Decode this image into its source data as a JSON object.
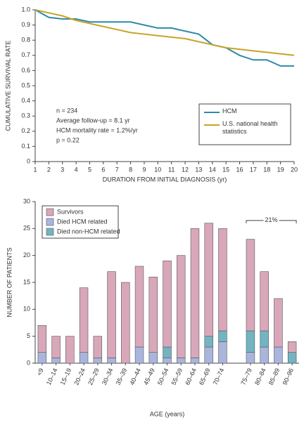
{
  "chart_data": [
    {
      "type": "line",
      "xlabel": "DURATION FROM INITIAL DIAGNOSIS (yr)",
      "ylabel": "CUMULATIVE SURVIVAL RATE",
      "x": [
        1,
        2,
        3,
        4,
        5,
        6,
        7,
        8,
        9,
        10,
        11,
        12,
        13,
        14,
        15,
        16,
        17,
        18,
        19,
        20
      ],
      "series": [
        {
          "name": "HCM",
          "color": "#2c8ba8",
          "values": [
            1.0,
            0.95,
            0.94,
            0.94,
            0.92,
            0.92,
            0.92,
            0.92,
            0.9,
            0.88,
            0.88,
            0.86,
            0.84,
            0.77,
            0.75,
            0.7,
            0.67,
            0.67,
            0.63,
            0.63
          ]
        },
        {
          "name": "U.S. national health statistics",
          "color": "#c9a227",
          "values": [
            1.0,
            0.98,
            0.96,
            0.93,
            0.91,
            0.89,
            0.87,
            0.85,
            0.84,
            0.83,
            0.82,
            0.81,
            0.79,
            0.77,
            0.75,
            0.74,
            0.73,
            0.72,
            0.71,
            0.7
          ]
        }
      ],
      "annotations": [
        "n = 234",
        "Average follow-up = 8.1 yr",
        "HCM mortality rate = 1.2%/yr",
        "p = 0.22"
      ],
      "xlim": [
        1,
        20
      ],
      "xticks": [
        1,
        2,
        3,
        4,
        5,
        6,
        7,
        8,
        9,
        10,
        11,
        12,
        13,
        14,
        15,
        16,
        17,
        18,
        19,
        20
      ],
      "ylim": [
        0,
        1
      ],
      "yticks": [
        0,
        0.1,
        0.2,
        0.3,
        0.4,
        0.5,
        0.6,
        0.7,
        0.8,
        0.9,
        {
          "value": 1,
          "label": "1.0"
        }
      ],
      "legend": "lower right"
    },
    {
      "type": "bar",
      "stacked": true,
      "xlabel": "AGE (years)",
      "ylabel": "NUMBER OF PATIENTS",
      "categories": [
        "<9",
        "10–14",
        "15–19",
        "20–24",
        "25–29",
        "30–34",
        "35–39",
        "40–44",
        "45–49",
        "50–54",
        "55–59",
        "60–64",
        "65–69",
        "70–74",
        null,
        "75–79",
        "80–84",
        "85–89",
        "90–96"
      ],
      "series": [
        {
          "name": "Survivors",
          "color": "#d9a7ba",
          "values": [
            5,
            4,
            5,
            12,
            4,
            16,
            15,
            15,
            14,
            16,
            19,
            24,
            21,
            19,
            null,
            17,
            11,
            9,
            2
          ]
        },
        {
          "name": "Died HCM related",
          "color": "#aab5dd",
          "values": [
            2,
            1,
            0,
            2,
            1,
            1,
            0,
            3,
            2,
            1,
            1,
            1,
            3,
            4,
            null,
            2,
            3,
            3,
            0
          ]
        },
        {
          "name": "Died non-HCM related",
          "color": "#72b4c2",
          "values": [
            0,
            0,
            0,
            0,
            0,
            0,
            0,
            0,
            0,
            2,
            0,
            0,
            2,
            2,
            null,
            4,
            3,
            0,
            2
          ]
        }
      ],
      "annotation": "21%",
      "ylim": [
        0,
        30
      ],
      "yticks": [
        0,
        5,
        10,
        15,
        20,
        25,
        30
      ],
      "legend": "upper left"
    }
  ]
}
